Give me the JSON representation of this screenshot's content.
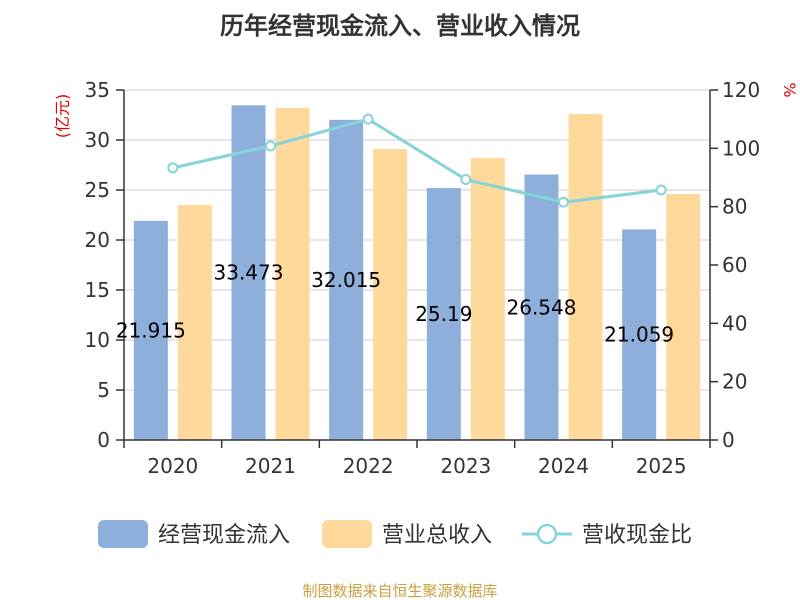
{
  "chart_data": {
    "type": "bar",
    "title": "历年经营现金流入、营业收入情况",
    "categories": [
      "2020",
      "2021",
      "2022",
      "2023",
      "2024",
      "2025"
    ],
    "series": [
      {
        "name": "经营现金流入",
        "kind": "bar",
        "axis": "left",
        "color": "#8eaedb",
        "values": [
          21.915,
          33.473,
          32.015,
          25.19,
          26.548,
          21.059
        ],
        "labels": [
          "21.915",
          "33.473",
          "32.015",
          "25.19",
          "26.548",
          "21.059"
        ]
      },
      {
        "name": "营业总收入",
        "kind": "bar",
        "axis": "left",
        "color": "#fdd99c",
        "values": [
          23.5,
          33.2,
          29.1,
          28.2,
          32.6,
          24.6
        ]
      },
      {
        "name": "营收现金比",
        "kind": "line",
        "axis": "right",
        "color": "#86d3d8",
        "values": [
          93.3,
          100.8,
          110.0,
          89.3,
          81.5,
          85.7
        ]
      }
    ],
    "y_left": {
      "label": "(亿元)",
      "min": 0,
      "max": 35,
      "ticks": [
        0,
        5,
        10,
        15,
        20,
        25,
        30,
        35
      ]
    },
    "y_right": {
      "label": "%",
      "min": 0,
      "max": 120,
      "ticks": [
        0,
        20,
        40,
        60,
        80,
        100,
        120
      ]
    },
    "grid": true,
    "legend_position": "bottom"
  },
  "source": "制图数据来自恒生聚源数据库"
}
